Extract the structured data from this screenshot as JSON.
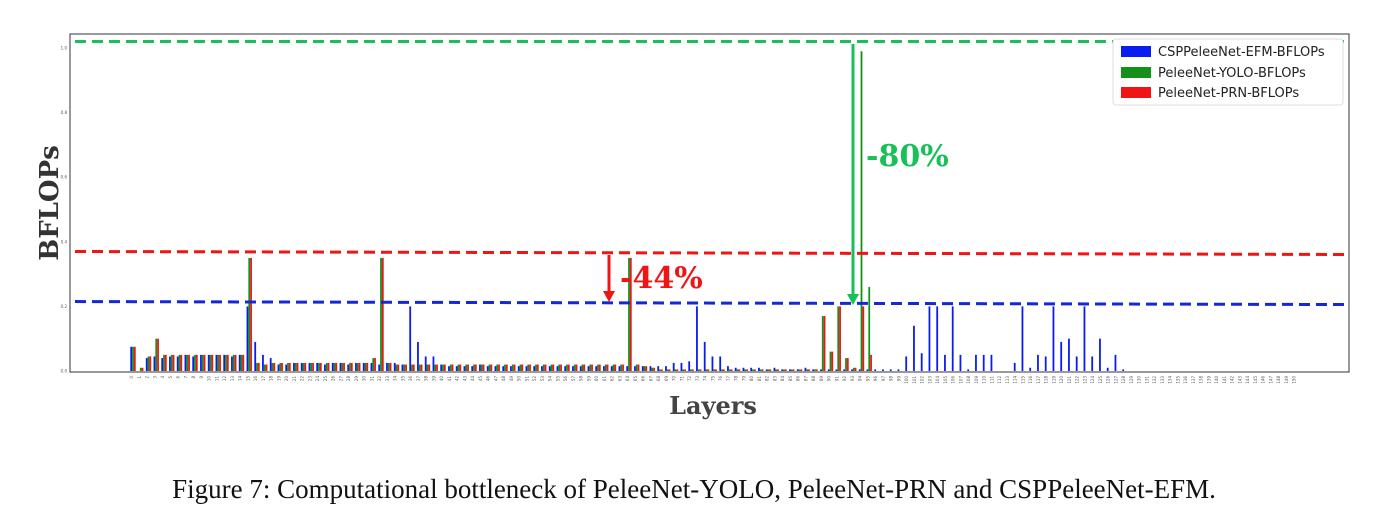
{
  "caption": "Figure 7: Computational bottleneck of PeleeNet-YOLO, PeleeNet-PRN and CSPPeleeNet-EFM.",
  "chart_data": {
    "type": "bar",
    "xlabel": "Layers",
    "ylabel": "BFLOPs",
    "ylim": [
      0,
      1.0
    ],
    "yticks": [
      "0.0",
      "0.2",
      "0.4",
      "0.6",
      "0.8",
      "1.0"
    ],
    "x_tick_count": 151,
    "legend_position": "top-right",
    "series": [
      {
        "name": "CSPPeleeNet-EFM-BFLOPs",
        "color": "#0a1cf0",
        "values": [
          0.075,
          0,
          0.04,
          0.045,
          0.04,
          0.045,
          0.045,
          0.05,
          0.045,
          0.05,
          0.05,
          0.05,
          0.05,
          0.045,
          0.05,
          0.2,
          0.09,
          0.05,
          0.04,
          0.02,
          0.02,
          0.025,
          0.025,
          0.025,
          0.025,
          0.02,
          0.025,
          0.025,
          0.02,
          0.025,
          0.025,
          0.025,
          0.02,
          0.025,
          0.025,
          0.02,
          0.2,
          0.09,
          0.045,
          0.045,
          0.02,
          0.015,
          0.015,
          0.015,
          0.015,
          0.02,
          0.015,
          0.015,
          0.015,
          0.015,
          0.015,
          0.015,
          0.015,
          0.015,
          0.015,
          0.015,
          0.015,
          0.015,
          0.015,
          0.015,
          0.015,
          0.015,
          0.015,
          0.015,
          0.015,
          0.015,
          0.015,
          0.015,
          0.015,
          0.015,
          0.025,
          0.025,
          0.03,
          0.2,
          0.09,
          0.045,
          0.045,
          0.015,
          0.01,
          0.01,
          0.01,
          0.01,
          0.005,
          0.01,
          0.005,
          0.005,
          0.005,
          0.01,
          0.005,
          0.005,
          0.005,
          0.005,
          0.005,
          0.005,
          0.005,
          0.005,
          0.005,
          0.005,
          0.005,
          0.005,
          0.045,
          0.14,
          0.055,
          0.2,
          0.2,
          0.05,
          0.2,
          0.05,
          0.005,
          0.05,
          0.05,
          0.05,
          0.0,
          0.0,
          0.025,
          0.2,
          0.01,
          0.05,
          0.045,
          0.2,
          0.09,
          0.1,
          0.045,
          0.2,
          0.045,
          0.1,
          0.01,
          0.05,
          0.005,
          0,
          0,
          0,
          0,
          0,
          0,
          0,
          0,
          0,
          0,
          0,
          0,
          0,
          0,
          0,
          0,
          0,
          0,
          0,
          0,
          0,
          0,
          0,
          0,
          0,
          0
        ]
      },
      {
        "name": "PeleeNet-YOLO-BFLOPs",
        "color": "#15911a",
        "values": [
          0.075,
          0.01,
          0.045,
          0.1,
          0.05,
          0.05,
          0.05,
          0.05,
          0.05,
          0.05,
          0.05,
          0.05,
          0.05,
          0.05,
          0.05,
          0.35,
          0.025,
          0.02,
          0.025,
          0.025,
          0.025,
          0.025,
          0.025,
          0.025,
          0.025,
          0.025,
          0.025,
          0.025,
          0.025,
          0.025,
          0.025,
          0.04,
          0.35,
          0.025,
          0.02,
          0.02,
          0.02,
          0.02,
          0.02,
          0.02,
          0.02,
          0.02,
          0.02,
          0.02,
          0.02,
          0.02,
          0.02,
          0.02,
          0.02,
          0.02,
          0.02,
          0.02,
          0.02,
          0.02,
          0.02,
          0.02,
          0.02,
          0.02,
          0.02,
          0.02,
          0.02,
          0.02,
          0.02,
          0.02,
          0.35,
          0.02,
          0.015,
          0.01,
          0.005,
          0.005,
          0.005,
          0.005,
          0.005,
          0.005,
          0.005,
          0.005,
          0.005,
          0.005,
          0.005,
          0.005,
          0.005,
          0.005,
          0.005,
          0.005,
          0.005,
          0.005,
          0.005,
          0.005,
          0.005,
          0.17,
          0.06,
          0.2,
          0.04,
          0.01,
          0.99,
          0.26,
          0,
          0,
          0,
          0,
          0,
          0,
          0,
          0,
          0,
          0,
          0,
          0,
          0,
          0,
          0,
          0,
          0,
          0,
          0,
          0,
          0,
          0,
          0,
          0,
          0,
          0,
          0,
          0,
          0,
          0,
          0,
          0,
          0,
          0,
          0,
          0,
          0,
          0,
          0,
          0,
          0,
          0,
          0,
          0,
          0,
          0,
          0,
          0,
          0,
          0,
          0,
          0,
          0,
          0,
          0,
          0,
          0,
          0,
          0,
          0,
          0,
          0,
          0,
          0,
          0
        ]
      },
      {
        "name": "PeleeNet-PRN-BFLOPs",
        "color": "#f01414",
        "values": [
          0.075,
          0.01,
          0.045,
          0.1,
          0.05,
          0.05,
          0.05,
          0.05,
          0.05,
          0.05,
          0.05,
          0.05,
          0.05,
          0.05,
          0.05,
          0.35,
          0.025,
          0.02,
          0.025,
          0.025,
          0.025,
          0.025,
          0.025,
          0.025,
          0.025,
          0.025,
          0.025,
          0.025,
          0.025,
          0.025,
          0.025,
          0.04,
          0.35,
          0.025,
          0.02,
          0.02,
          0.02,
          0.02,
          0.02,
          0.02,
          0.02,
          0.02,
          0.02,
          0.02,
          0.02,
          0.02,
          0.02,
          0.02,
          0.02,
          0.02,
          0.02,
          0.02,
          0.02,
          0.02,
          0.02,
          0.02,
          0.02,
          0.02,
          0.02,
          0.02,
          0.02,
          0.02,
          0.02,
          0.02,
          0.35,
          0.02,
          0.015,
          0.01,
          0.005,
          0.005,
          0.005,
          0.005,
          0.005,
          0.005,
          0.005,
          0.005,
          0.005,
          0.005,
          0.005,
          0.005,
          0.005,
          0.005,
          0.005,
          0.005,
          0.005,
          0.005,
          0.005,
          0.005,
          0.005,
          0.17,
          0.06,
          0.2,
          0.04,
          0.01,
          0.2,
          0.05,
          0,
          0,
          0,
          0,
          0,
          0,
          0,
          0,
          0,
          0,
          0,
          0,
          0,
          0,
          0,
          0,
          0,
          0,
          0,
          0,
          0,
          0,
          0,
          0,
          0,
          0,
          0,
          0,
          0,
          0,
          0,
          0,
          0,
          0,
          0,
          0,
          0,
          0,
          0,
          0,
          0,
          0,
          0,
          0,
          0,
          0,
          0,
          0,
          0,
          0,
          0,
          0,
          0,
          0,
          0,
          0,
          0,
          0,
          0,
          0,
          0,
          0,
          0,
          0
        ]
      }
    ],
    "reference_lines": [
      {
        "series": "PeleeNet-YOLO-BFLOPs",
        "value": 1.02,
        "color": "#19c05a"
      },
      {
        "series": "PeleeNet-PRN-BFLOPs",
        "value": 0.37,
        "color": "#f01414"
      },
      {
        "series": "CSPPeleeNet-EFM-BFLOPs",
        "value": 0.215,
        "color": "#1428d8"
      }
    ],
    "annotations": [
      {
        "text": "-80%",
        "color": "#19c05a"
      },
      {
        "text": "-44%",
        "color": "#f01414"
      }
    ]
  }
}
